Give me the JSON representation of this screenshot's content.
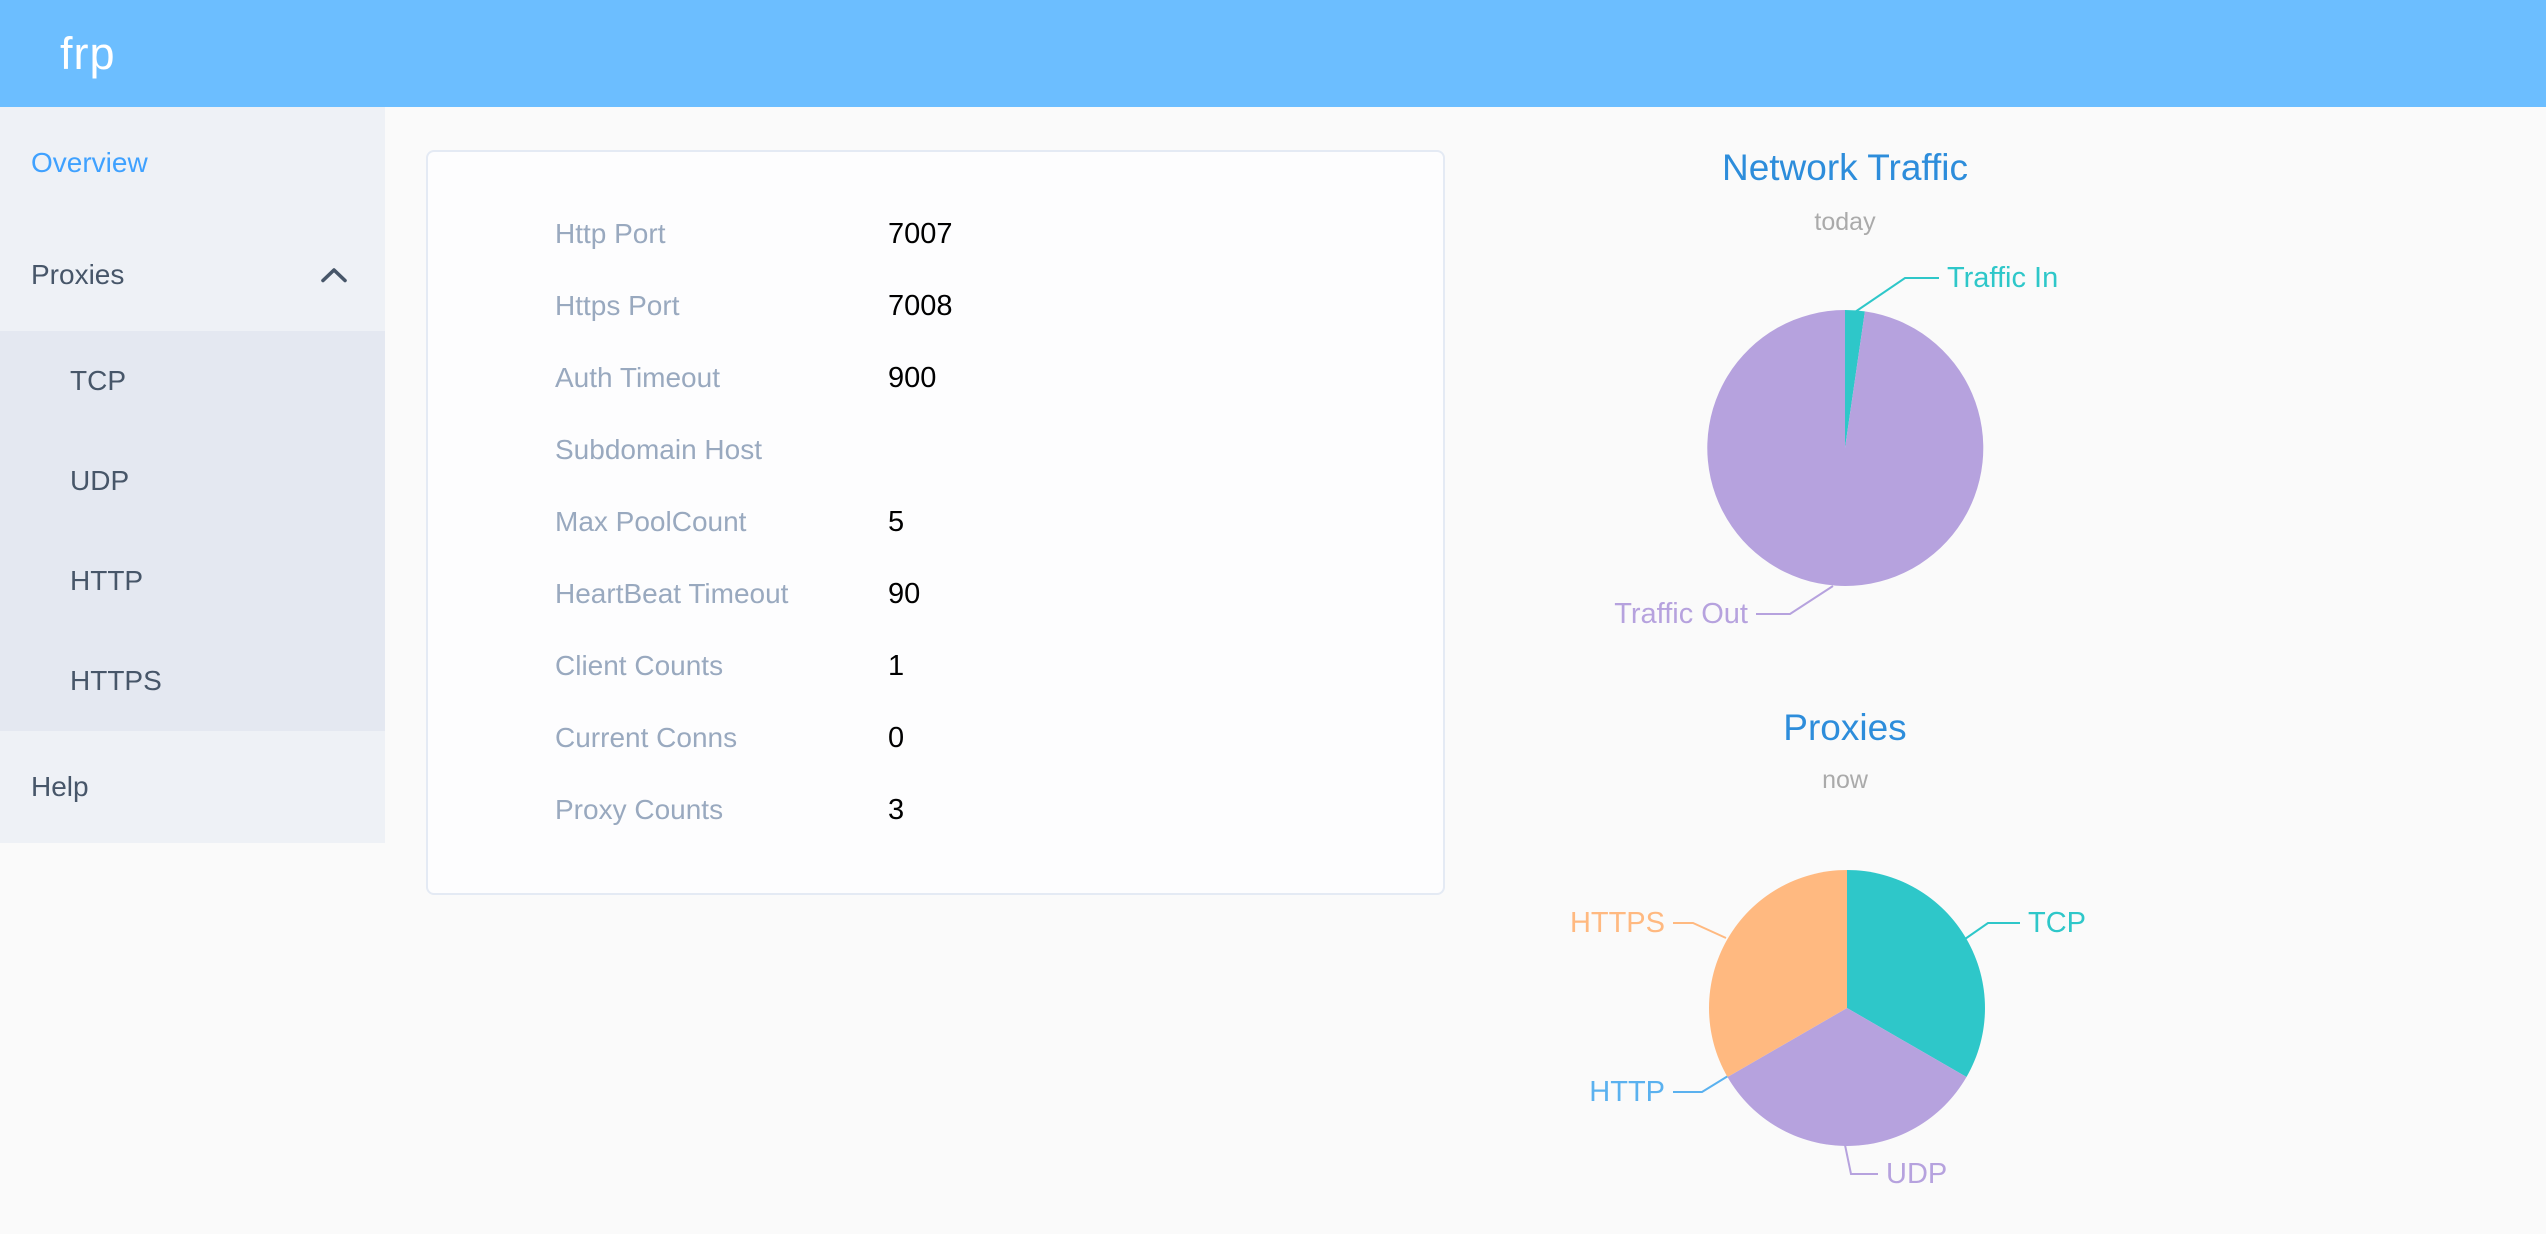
{
  "header": {
    "logo": "frp"
  },
  "sidebar": {
    "items": [
      {
        "id": "overview",
        "label": "Overview",
        "active": true
      },
      {
        "id": "proxies",
        "label": "Proxies",
        "expanded": true,
        "icon": "chevron-up-icon",
        "children": [
          {
            "id": "tcp",
            "label": "TCP"
          },
          {
            "id": "udp",
            "label": "UDP"
          },
          {
            "id": "http",
            "label": "HTTP"
          },
          {
            "id": "https",
            "label": "HTTPS"
          }
        ]
      },
      {
        "id": "help",
        "label": "Help"
      }
    ]
  },
  "overview_card": {
    "rows": [
      {
        "label": "Http Port",
        "value": "7007"
      },
      {
        "label": "Https Port",
        "value": "7008"
      },
      {
        "label": "Auth Timeout",
        "value": "900"
      },
      {
        "label": "Subdomain Host",
        "value": ""
      },
      {
        "label": "Max PoolCount",
        "value": "5"
      },
      {
        "label": "HeartBeat Timeout",
        "value": "90"
      },
      {
        "label": "Client Counts",
        "value": "1"
      },
      {
        "label": "Current Conns",
        "value": "0"
      },
      {
        "label": "Proxy Counts",
        "value": "3"
      }
    ]
  },
  "chart_data": [
    {
      "type": "pie",
      "id": "traffic",
      "title": "Network Traffic",
      "subtitle": "today",
      "legend_position": "callout-labels",
      "slices": [
        {
          "name": "Traffic In",
          "value": 2.3,
          "unit": "percent-estimated",
          "color": "#2ec7c9"
        },
        {
          "name": "Traffic Out",
          "value": 97.7,
          "unit": "percent-estimated",
          "color": "#b6a2de"
        }
      ]
    },
    {
      "type": "pie",
      "id": "proxies",
      "title": "Proxies",
      "subtitle": "now",
      "legend_position": "callout-labels",
      "slices": [
        {
          "name": "TCP",
          "value": 1,
          "color": "#2ec7c9"
        },
        {
          "name": "UDP",
          "value": 1,
          "color": "#b6a2de"
        },
        {
          "name": "HTTP",
          "value": 0,
          "color": "#5ab1ef"
        },
        {
          "name": "HTTPS",
          "value": 1,
          "color": "#ffb980"
        }
      ]
    }
  ],
  "colors": {
    "header_bg": "#6cbeff",
    "sidebar_bg": "#eef1f6",
    "submenu_bg": "#e4e8f1",
    "menu_text": "#475669",
    "menu_active": "#3fa1ff",
    "chart_title": "#2d8ddb",
    "chart_subtitle": "#aaaaaa",
    "card_label": "#99a9bf",
    "card_value": "#000000"
  }
}
